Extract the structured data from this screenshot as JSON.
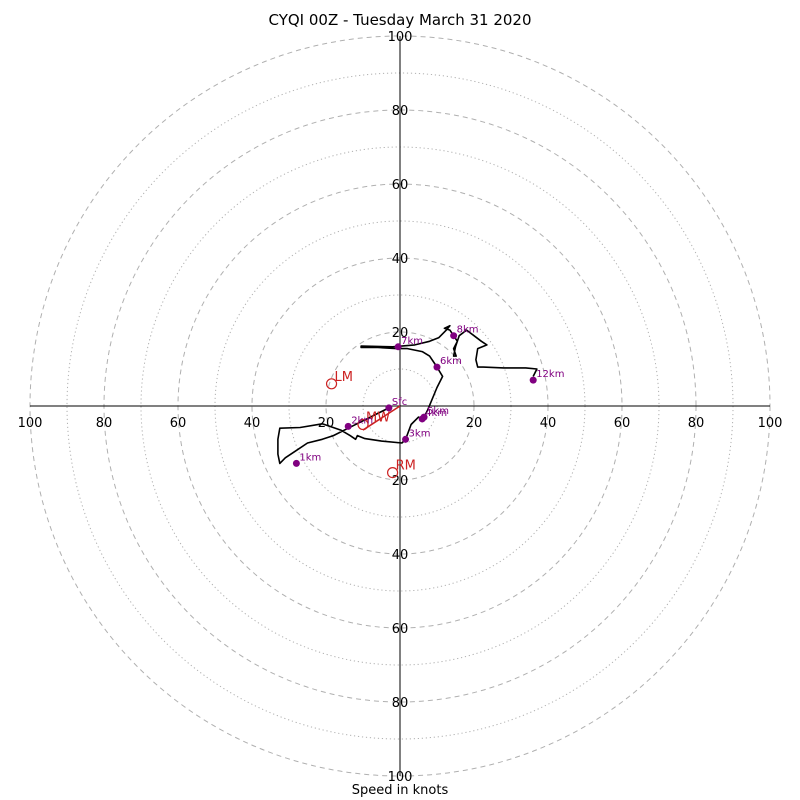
{
  "chart_data": {
    "type": "hodograph",
    "title": "CYQI 00Z - Tuesday March 31 2020",
    "xlabel": "Speed in knots",
    "range": [
      -100,
      100
    ],
    "ring_step": 10,
    "tick_labels": [
      {
        "label": "100",
        "value": -100
      },
      {
        "label": "80",
        "value": -80
      },
      {
        "label": "60",
        "value": -60
      },
      {
        "label": "40",
        "value": -40
      },
      {
        "label": "20",
        "value": -20
      },
      {
        "label": "20",
        "value": 20
      },
      {
        "label": "40",
        "value": 40
      },
      {
        "label": "60",
        "value": 60
      },
      {
        "label": "80",
        "value": 80
      },
      {
        "label": "100",
        "value": 100
      }
    ],
    "colors": {
      "trace": "#000000",
      "height_markers": "#800080",
      "motion": "#cc2222",
      "grid": "#b0b0b0"
    },
    "trace": [
      [
        -3,
        -0.5
      ],
      [
        -6,
        -2
      ],
      [
        -10,
        -4
      ],
      [
        -14,
        -6
      ],
      [
        -18,
        -8
      ],
      [
        -21,
        -9
      ],
      [
        -25,
        -10
      ],
      [
        -28,
        -12
      ],
      [
        -31,
        -14
      ],
      [
        -32.5,
        -15.5
      ],
      [
        -33,
        -13
      ],
      [
        -33,
        -9
      ],
      [
        -32.5,
        -6
      ],
      [
        -27,
        -5.8
      ],
      [
        -21,
        -4.8
      ],
      [
        -16,
        -6.5
      ],
      [
        -13.5,
        -8
      ],
      [
        -12,
        -9
      ],
      [
        -11.5,
        -8
      ],
      [
        -9.5,
        -8.8
      ],
      [
        -5,
        -9.5
      ],
      [
        0.5,
        -10
      ],
      [
        1.5,
        -9
      ],
      [
        3,
        -5
      ],
      [
        5,
        -3
      ],
      [
        6,
        -3.5
      ],
      [
        6.5,
        -3
      ],
      [
        7.5,
        -1
      ],
      [
        10,
        5
      ],
      [
        11.5,
        8
      ],
      [
        9.8,
        10.8
      ],
      [
        8,
        13.5
      ],
      [
        6,
        14.7
      ],
      [
        2,
        15.5
      ],
      [
        -1,
        15.5
      ],
      [
        -6,
        15.8
      ],
      [
        -10.5,
        15.8
      ],
      [
        -10.5,
        16.2
      ],
      [
        -2,
        16
      ],
      [
        4,
        16.5
      ],
      [
        8,
        17.5
      ],
      [
        10.5,
        18.5
      ],
      [
        12.5,
        20.5
      ],
      [
        13.5,
        21.7
      ],
      [
        12,
        21
      ],
      [
        13.5,
        20.5
      ],
      [
        14.5,
        19
      ],
      [
        15.5,
        17.5
      ],
      [
        14.5,
        15.5
      ],
      [
        15.2,
        13.5
      ],
      [
        14.5,
        13.5
      ],
      [
        15,
        16
      ],
      [
        16,
        19
      ],
      [
        18,
        20.5
      ],
      [
        20,
        19
      ],
      [
        22,
        17.5
      ],
      [
        23.5,
        16.5
      ],
      [
        21,
        15.5
      ],
      [
        20.5,
        12.5
      ],
      [
        21,
        10.5
      ],
      [
        22.5,
        10.5
      ],
      [
        28,
        10.3
      ],
      [
        34,
        10.3
      ],
      [
        37,
        10
      ],
      [
        36,
        8
      ]
    ],
    "heights": [
      {
        "label": "Sfc",
        "u": -3,
        "v": -0.5
      },
      {
        "label": "1km",
        "u": -28,
        "v": -15.5
      },
      {
        "label": "2km",
        "u": -14,
        "v": -5.5
      },
      {
        "label": "3km",
        "u": 1.5,
        "v": -9
      },
      {
        "label": "4km",
        "u": 6,
        "v": -3.5
      },
      {
        "label": "5km",
        "u": 6.5,
        "v": -3
      },
      {
        "label": "6km",
        "u": 10,
        "v": 10.5
      },
      {
        "label": "7km",
        "u": -0.5,
        "v": 16
      },
      {
        "label": "8km",
        "u": 14.5,
        "v": 19
      },
      {
        "label": "12km",
        "u": 36,
        "v": 7
      }
    ],
    "storm_motion": [
      {
        "label": "LM",
        "u": -18.5,
        "v": 6
      },
      {
        "label": "RM",
        "u": -2,
        "v": -18
      },
      {
        "label": "MW",
        "u": -10,
        "v": -5
      }
    ],
    "mean_wind_vector": {
      "from": [
        0,
        0
      ],
      "to": [
        -10,
        -6.5
      ]
    }
  }
}
